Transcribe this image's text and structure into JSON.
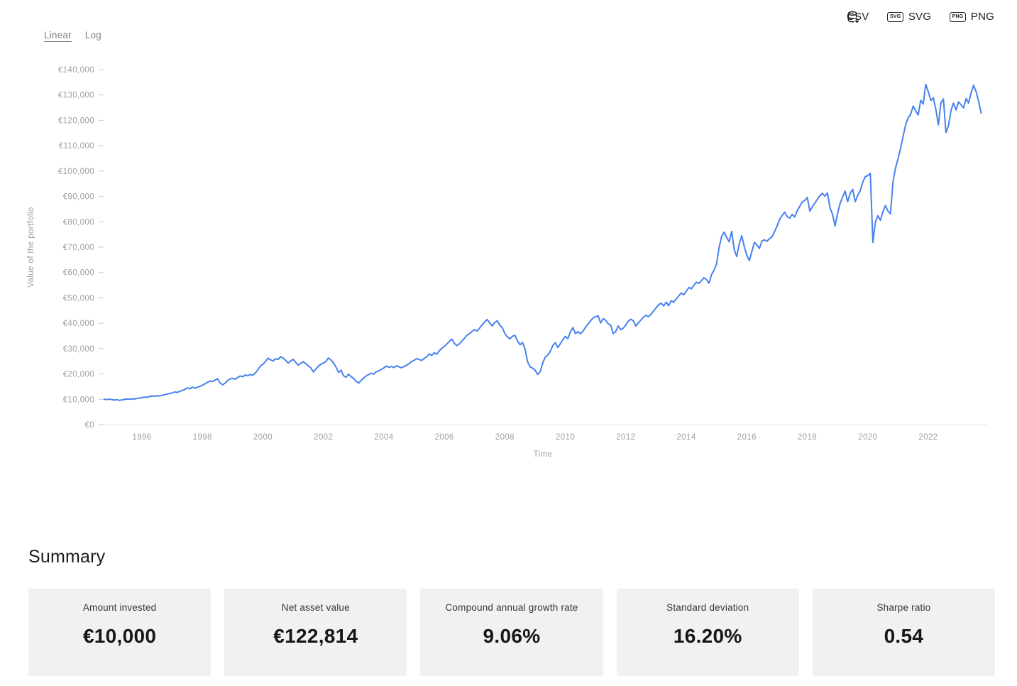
{
  "scale_toggle": {
    "active": "Linear",
    "options": [
      {
        "label": "Linear"
      },
      {
        "label": "Log"
      }
    ]
  },
  "export": {
    "items": [
      {
        "label": "CSV",
        "icon": "database-download-icon",
        "badge": null
      },
      {
        "label": "SVG",
        "icon": "svg-file-badge-icon",
        "badge": "SVG"
      },
      {
        "label": "PNG",
        "icon": "png-file-badge-icon",
        "badge": "PNG"
      }
    ]
  },
  "summary": {
    "title": "Summary",
    "cards": [
      {
        "label": "Amount invested",
        "value": "€10,000"
      },
      {
        "label": "Net asset value",
        "value": "€122,814"
      },
      {
        "label": "Compound annual growth rate",
        "value": "9.06%"
      },
      {
        "label": "Standard deviation",
        "value": "16.20%"
      },
      {
        "label": "Sharpe ratio",
        "value": "0.54"
      }
    ]
  },
  "chart_data": {
    "type": "line",
    "title": "",
    "xlabel": "Time",
    "ylabel": "Value of the portfolio",
    "legend": null,
    "grid": false,
    "line_color": "#4781ee",
    "axis_text_color": "#9ba1a6",
    "ylim": [
      0,
      140000
    ],
    "xlim": [
      1994.7,
      2023.85
    ],
    "y_ticks": [
      0,
      10000,
      20000,
      30000,
      40000,
      50000,
      60000,
      70000,
      80000,
      90000,
      100000,
      110000,
      120000,
      130000,
      140000
    ],
    "y_tick_labels": [
      "€0",
      "€10,000",
      "€20,000",
      "€30,000",
      "€40,000",
      "€50,000",
      "€60,000",
      "€70,000",
      "€80,000",
      "€90,000",
      "€100,000",
      "€110,000",
      "€120,000",
      "€130,000",
      "€140,000"
    ],
    "x_ticks": [
      1996,
      1998,
      2000,
      2002,
      2004,
      2006,
      2008,
      2010,
      2012,
      2014,
      2016,
      2018,
      2020,
      2022
    ],
    "x_tick_labels": [
      "1996",
      "1998",
      "2000",
      "2002",
      "2004",
      "2006",
      "2008",
      "2010",
      "2012",
      "2014",
      "2016",
      "2018",
      "2020",
      "2022"
    ],
    "series_name": "Value of the portfolio (EUR)",
    "frequency": "monthly",
    "start_year_fraction": 1994.75,
    "values_eur": [
      10000,
      9900,
      10050,
      9900,
      9700,
      9850,
      9600,
      9750,
      9900,
      10100,
      10000,
      10200,
      10100,
      10300,
      10500,
      10650,
      10900,
      10800,
      11100,
      11300,
      11200,
      11450,
      11300,
      11600,
      11800,
      12100,
      12300,
      12500,
      12900,
      12700,
      13100,
      13500,
      13900,
      14500,
      14100,
      14800,
      14400,
      14700,
      15100,
      15500,
      16100,
      16700,
      17200,
      17000,
      17600,
      18100,
      16500,
      15700,
      16400,
      17400,
      18000,
      18300,
      17900,
      18600,
      19200,
      18900,
      19600,
      19300,
      19800,
      19500,
      20400,
      21600,
      23200,
      23800,
      24900,
      26200,
      25600,
      25100,
      26000,
      25700,
      26800,
      26300,
      25400,
      24300,
      25100,
      25800,
      24600,
      23400,
      24200,
      24800,
      24100,
      23200,
      22400,
      20800,
      21900,
      23100,
      23800,
      24300,
      24900,
      26300,
      25500,
      24400,
      22700,
      20600,
      21500,
      19300,
      18700,
      19900,
      18900,
      18200,
      17100,
      16400,
      17500,
      18400,
      19200,
      19800,
      20300,
      19900,
      20900,
      21200,
      21800,
      22400,
      23100,
      22600,
      23000,
      22500,
      23200,
      22800,
      22400,
      22900,
      23400,
      24100,
      24900,
      25400,
      26000,
      25700,
      25300,
      26100,
      26800,
      27900,
      27300,
      28400,
      27800,
      29200,
      30100,
      30900,
      31800,
      32900,
      33700,
      32000,
      31200,
      31900,
      33000,
      34100,
      35300,
      35900,
      36800,
      37500,
      36900,
      38100,
      39400,
      40600,
      41500,
      40100,
      38900,
      40300,
      41000,
      39200,
      38300,
      35900,
      34600,
      33800,
      34900,
      35200,
      33100,
      31500,
      32400,
      29800,
      24900,
      22800,
      22300,
      21500,
      19800,
      20900,
      24300,
      26600,
      27400,
      28900,
      31200,
      32300,
      30400,
      31900,
      33500,
      34800,
      33900,
      36600,
      38300,
      35900,
      36700,
      35800,
      36900,
      38400,
      39700,
      40900,
      42100,
      42600,
      42900,
      40100,
      41800,
      41200,
      39800,
      39200,
      35900,
      36800,
      38900,
      37400,
      38100,
      39300,
      40800,
      41600,
      40900,
      38900,
      40200,
      41300,
      42400,
      43100,
      42600,
      43600,
      44800,
      46100,
      47300,
      47900,
      46800,
      48300,
      46900,
      48900,
      48300,
      49600,
      50800,
      51900,
      51200,
      52600,
      54100,
      53600,
      54900,
      56200,
      55700,
      56800,
      57900,
      57200,
      55800,
      59100,
      60900,
      63400,
      69800,
      74200,
      75900,
      73800,
      72100,
      76200,
      68900,
      66300,
      71400,
      74500,
      70100,
      66800,
      64700,
      68300,
      71900,
      70800,
      69500,
      72400,
      72900,
      72300,
      73400,
      74100,
      76200,
      78300,
      80900,
      82400,
      83800,
      82100,
      81400,
      82900,
      81900,
      84300,
      86100,
      87800,
      88400,
      89600,
      84200,
      85900,
      87400,
      88900,
      90300,
      91200,
      90100,
      91400,
      85600,
      82900,
      78300,
      83400,
      87200,
      89800,
      92100,
      87900,
      91200,
      92800,
      87900,
      90400,
      92300,
      95600,
      97800,
      98200,
      99100,
      71900,
      79800,
      82400,
      80600,
      83900,
      86400,
      84200,
      83100,
      95800,
      101200,
      104800,
      108900,
      113600,
      118200,
      120900,
      122400,
      125600,
      123800,
      122100,
      127900,
      126400,
      134200,
      131200,
      127800,
      128900,
      124300,
      118200,
      126900,
      128400,
      115200,
      117800,
      123900,
      126800,
      124100,
      127300,
      126100,
      124900,
      128600,
      126800,
      130900,
      133800,
      131200,
      127400,
      122814
    ]
  }
}
